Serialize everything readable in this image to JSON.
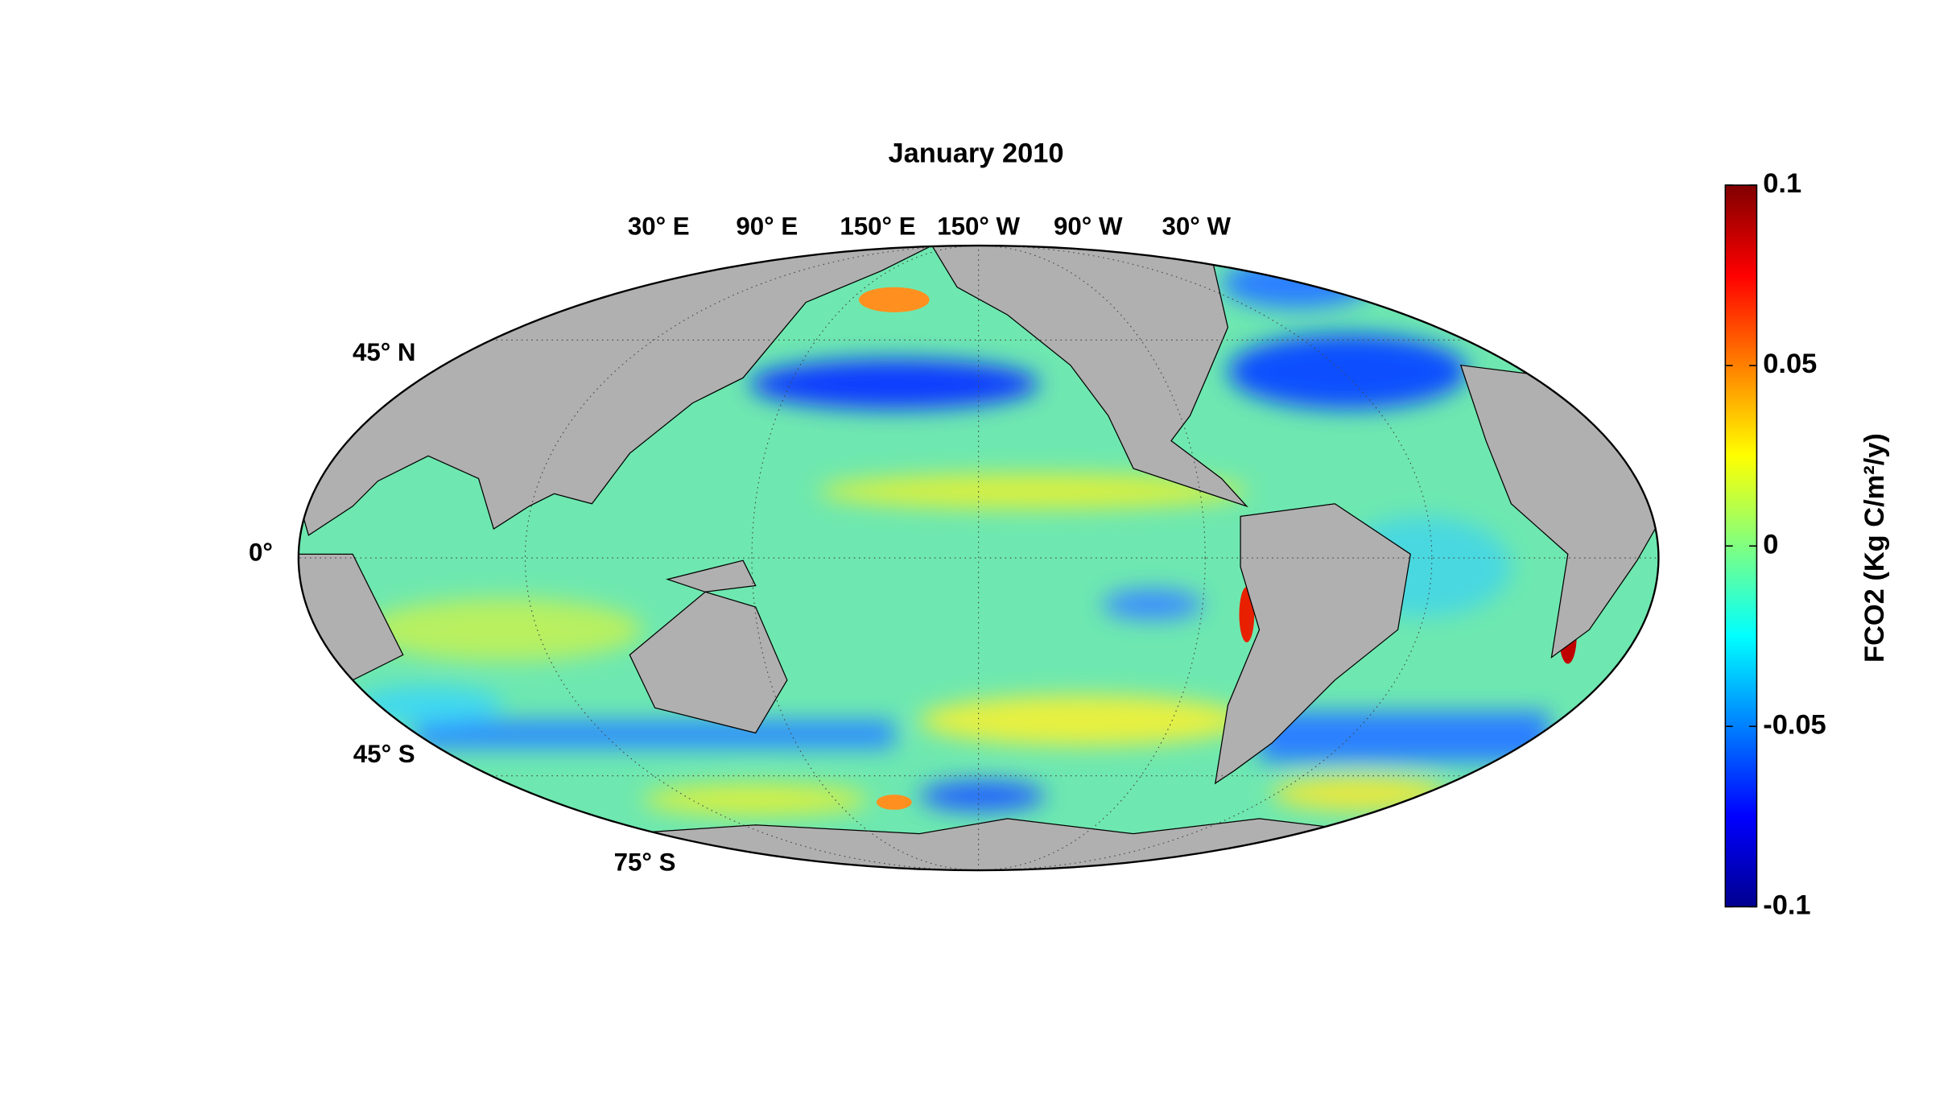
{
  "chart_data": {
    "type": "map",
    "title": "January 2010",
    "lon_labels": [
      "30° E",
      "90° E",
      "150° E",
      "150° W",
      "90° W",
      "30° W"
    ],
    "lat_labels": [
      "45° N",
      "0°",
      "45° S",
      "75° S"
    ],
    "colorbar": {
      "label": "FCO2 (Kg C/m²/y)",
      "ylim": [
        -0.1,
        0.1
      ],
      "yticks": [
        -0.1,
        -0.05,
        0,
        0.05,
        0.1
      ],
      "colormap": [
        "#00008f",
        "#0000ff",
        "#0080ff",
        "#00ffff",
        "#80ff80",
        "#ffff00",
        "#ff8000",
        "#ff0000",
        "#800000"
      ]
    }
  }
}
